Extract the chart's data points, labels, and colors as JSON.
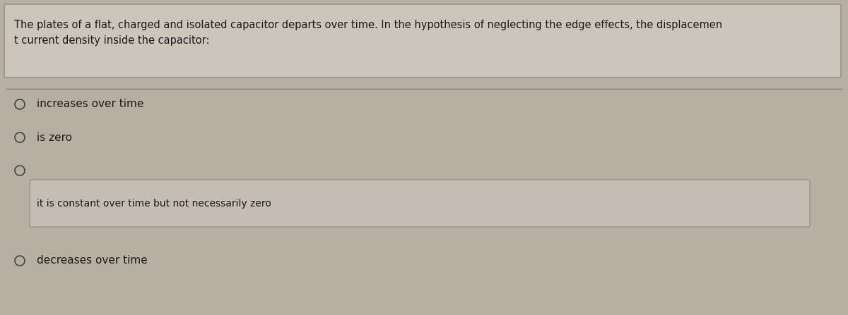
{
  "bg_color": "#b8afa3",
  "question_box_color": "#ccc5bb",
  "question_box_border": "#999087",
  "question_text_line1": "The plates of a flat, charged and isolated capacitor departs over time. In the hypothesis of neglecting the edge effects, the displacemen",
  "question_text_line2": "t current density inside the capacitor:",
  "answer_box_color": "#c5bdb4",
  "answer_box_border": "#999087",
  "answer_highlighted_text": "it is constant over time but not necessarily zero",
  "options": [
    "increases over time",
    "is zero",
    "",
    "decreases over time"
  ],
  "highlighted_option_index": 2,
  "text_color": "#1a1a1a",
  "circle_color": "#444444",
  "separator_color": "#777777",
  "font_size_question": 10.5,
  "font_size_options": 11.0,
  "grid_color": "#c9c2b8",
  "grid_alpha": 0.5
}
